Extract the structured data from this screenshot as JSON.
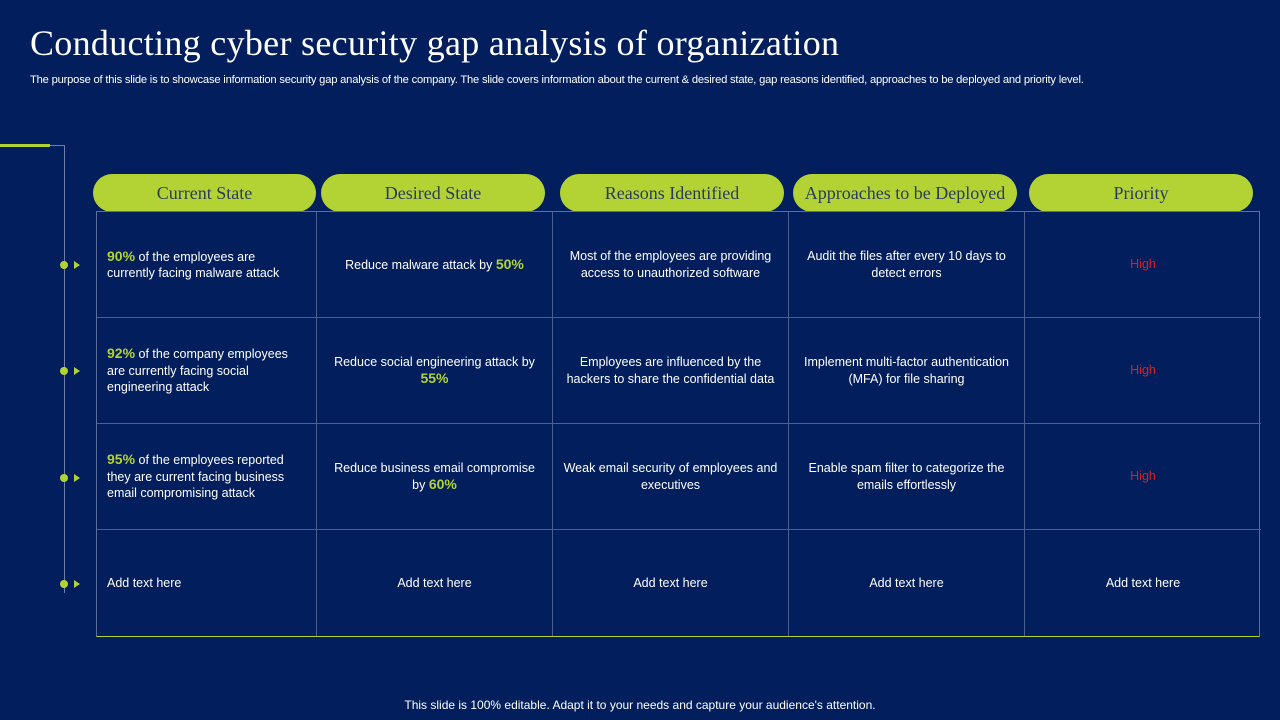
{
  "title": "Conducting cyber security gap analysis of organization",
  "subtitle": "The purpose of this slide is to showcase information security gap analysis of the company. The slide covers information about the current &  desired state, gap reasons identified, approaches to be deployed and priority level.",
  "headers": [
    "Current State",
    "Desired State",
    "Reasons Identified",
    "Approaches to be Deployed",
    "Priority"
  ],
  "rows": [
    {
      "current_pct": "90%",
      "current_text": " of the employees are currently facing malware attack",
      "desired_text": "Reduce malware attack by ",
      "desired_pct": "50%",
      "reason": "Most of the employees are providing access to unauthorized software",
      "approach": "Audit the files after every 10 days to detect errors",
      "priority": "High"
    },
    {
      "current_pct": "92%",
      "current_text": " of the company employees are currently facing social engineering attack",
      "desired_text": "Reduce social engineering attack by ",
      "desired_pct": "55%",
      "reason": "Employees are influenced by the hackers to share the confidential data",
      "approach": "Implement multi-factor authentication (MFA) for file sharing",
      "priority": "High"
    },
    {
      "current_pct": "95%",
      "current_text": " of the employees reported they are current facing business email compromising attack",
      "desired_text": "Reduce business email compromise by ",
      "desired_pct": "60%",
      "reason": "Weak email security of employees and executives",
      "approach": "Enable spam filter to categorize the emails effortlessly",
      "priority": "High"
    },
    {
      "current": "Add text here",
      "desired": "Add text here",
      "reason": "Add text here",
      "approach": "Add text here",
      "priority": "Add text here"
    }
  ],
  "footer": "This slide is 100% editable. Adapt it to your needs and capture your audience's attention.",
  "colors": {
    "background": "#021e5c",
    "accent": "#b3d334",
    "priority_high": "#e21c1c"
  }
}
